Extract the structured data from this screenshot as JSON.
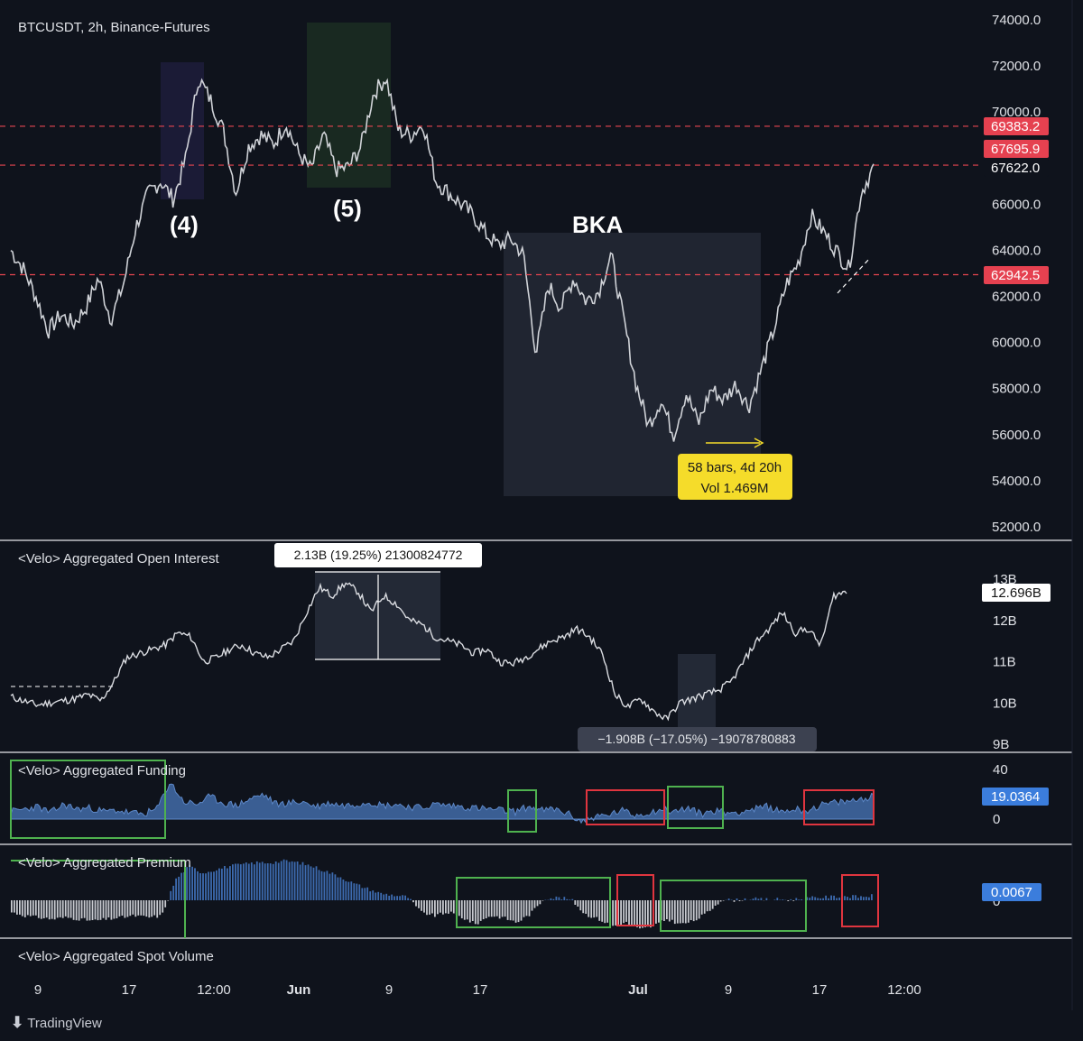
{
  "colors": {
    "background": "#0f131c",
    "candle": "#d9dbe0",
    "grid_text": "#dfe1e6",
    "divider": "#e6e8ec",
    "red_level": "#e5454f",
    "level_badge": "#e54150",
    "funding_fill": "#3a5e93",
    "premium_pos": "#3d6bb0",
    "premium_neg": "#c8cad0",
    "highlight_box_green": "#4fb24f",
    "highlight_box_red": "#e0353f",
    "measure_yellow": "#f5dc2a",
    "current_badge": "#3b7ddc"
  },
  "panels": {
    "price": {
      "label": "BTCUSDT, 2h, Binance-Futures",
      "y_ticks": [
        "74000.0",
        "72000.0",
        "70000.0",
        "66000.0",
        "64000.0",
        "62000.0",
        "60000.0",
        "58000.0",
        "56000.0",
        "54000.0",
        "52000.0"
      ],
      "levels": [
        {
          "value": "69383.2",
          "style": "red"
        },
        {
          "value": "67695.9",
          "style": "red"
        },
        {
          "value": "67622.0",
          "style": "dark"
        },
        {
          "value": "62942.5",
          "style": "red"
        }
      ],
      "annotations": {
        "wave4": "(4)",
        "wave5": "(5)",
        "bka": "BKA"
      },
      "measure": {
        "line1": "58 bars, 4d 20h",
        "line2": "Vol 1.469M"
      }
    },
    "open_interest": {
      "label": "<Velo> Aggregated Open Interest",
      "y_ticks": [
        "13B",
        "12B",
        "11B",
        "10B",
        "9B"
      ],
      "current": "12.696B",
      "measure_up": "2.13B (19.25%) 21300824772",
      "measure_down": "−1.908B (−17.05%) −19078780883"
    },
    "funding": {
      "label": "<Velo> Aggregated Funding",
      "y_ticks": [
        "40",
        "0"
      ],
      "current": "19.0364"
    },
    "premium": {
      "label": "<Velo> Aggregated Premium",
      "y_ticks": [
        "0"
      ],
      "current": "0.0067"
    },
    "spot_volume": {
      "label": "<Velo> Aggregated Spot Volume"
    }
  },
  "x_axis": {
    "ticks": [
      "9",
      "17",
      "12:00",
      "Jun",
      "9",
      "17",
      "Jul",
      "9",
      "17",
      "12:00"
    ]
  },
  "footer": {
    "brand": "TradingView"
  },
  "chart_data": [
    {
      "type": "line",
      "title": "BTCUSDT, 2h, Binance-Futures",
      "series": [
        {
          "name": "BTCUSDT",
          "values": [
            64000,
            63200,
            62000,
            60500,
            61200,
            60800,
            61500,
            62800,
            61000,
            62500,
            65000,
            66500,
            67000,
            66200,
            68000,
            71500,
            70500,
            69200,
            66500,
            68500,
            69000,
            68600,
            69500,
            68200,
            67500,
            69000,
            67500,
            67600,
            68500,
            70800,
            71500,
            69200,
            69000,
            69500,
            67000,
            66500,
            66000,
            65500,
            64700,
            64200,
            64500,
            63800,
            59500,
            62500,
            61500,
            62800,
            61800,
            62200,
            63800,
            61000,
            58200,
            56400,
            57500,
            56000,
            57800,
            56500,
            58000,
            57500,
            58200,
            57200,
            58800,
            60500,
            62500,
            63500,
            65500,
            64800,
            64000,
            63200,
            66500,
            67600
          ]
        }
      ],
      "yrange": [
        51500,
        74500
      ],
      "horizontal_levels": [
        69383.2,
        67695.9,
        62942.5
      ]
    },
    {
      "type": "line",
      "title": "<Velo> Aggregated Open Interest",
      "series": [
        {
          "name": "Open Interest (B)",
          "values": [
            10.15,
            10.05,
            9.95,
            10.0,
            10.05,
            10.1,
            10.2,
            10.05,
            10.5,
            11.1,
            11.2,
            11.3,
            11.4,
            11.7,
            11.6,
            11.0,
            11.1,
            11.3,
            11.4,
            11.2,
            11.1,
            11.3,
            11.5,
            12.2,
            12.8,
            12.6,
            12.9,
            12.7,
            12.2,
            12.6,
            12.4,
            12.0,
            11.9,
            11.6,
            11.5,
            11.4,
            11.2,
            11.3,
            11.0,
            10.95,
            11.1,
            11.3,
            11.5,
            11.6,
            11.8,
            11.6,
            11.2,
            10.2,
            9.9,
            10.1,
            9.8,
            9.6,
            10.0,
            10.1,
            10.2,
            10.3,
            10.5,
            11.0,
            11.5,
            11.8,
            12.2,
            11.7,
            11.8,
            11.4,
            12.6,
            12.7
          ]
        }
      ],
      "yrange": [
        8.9,
        13.4
      ]
    },
    {
      "type": "area",
      "title": "<Velo> Aggregated Funding",
      "series": [
        {
          "name": "Funding",
          "values": [
            6,
            8,
            10,
            5,
            12,
            8,
            9,
            6,
            7,
            5,
            4,
            8,
            30,
            14,
            12,
            18,
            13,
            11,
            16,
            20,
            12,
            13,
            14,
            10,
            13,
            11,
            12,
            14,
            11,
            12,
            10,
            9,
            12,
            11,
            10,
            9,
            8,
            7,
            6,
            10,
            7,
            8,
            4,
            -2,
            2,
            3,
            7,
            3,
            5,
            8,
            6,
            9,
            4,
            7,
            5,
            6,
            8,
            10,
            6,
            8,
            7,
            11,
            13,
            14,
            16,
            19
          ]
        }
      ],
      "yrange": [
        -8,
        45
      ]
    },
    {
      "type": "bar",
      "title": "<Velo> Aggregated Premium",
      "series": [
        {
          "name": "Premium",
          "values": [
            -0.35,
            -0.45,
            -0.5,
            -0.55,
            -0.5,
            -0.55,
            -0.6,
            -0.55,
            -0.5,
            -0.45,
            -0.5,
            -0.45,
            0.6,
            1.0,
            0.8,
            0.9,
            1.0,
            1.05,
            1.1,
            1.1,
            1.15,
            1.1,
            1.0,
            0.85,
            0.7,
            0.5,
            0.35,
            0.2,
            0.15,
            0.1,
            -0.35,
            -0.45,
            -0.35,
            -0.5,
            -0.7,
            -0.45,
            -0.5,
            -0.65,
            -0.4,
            0.05,
            0.08,
            0.02,
            -0.4,
            -0.55,
            -0.75,
            -0.65,
            -0.85,
            -0.75,
            -0.55,
            -0.7,
            -0.6,
            -0.35,
            0.02,
            0.0,
            0.05,
            0.02,
            0.03,
            0.01,
            0.05,
            0.08,
            0.1,
            0.12,
            0.1,
            0.13
          ]
        }
      ],
      "yrange": [
        -1.0,
        1.4
      ]
    }
  ]
}
